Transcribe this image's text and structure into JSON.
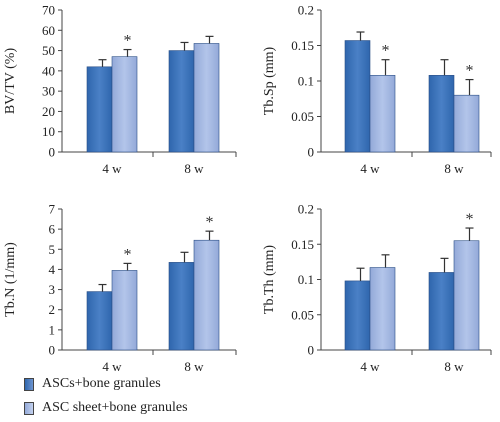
{
  "colors": {
    "series1": "#2f66ad",
    "series2": "#93a9d8"
  },
  "legend": {
    "items": [
      "ASCs+bone granules",
      "ASC sheet+bone granules"
    ]
  },
  "chart_data": [
    {
      "type": "bar",
      "ylabel": "BV/TV (%)",
      "categories": [
        "4 w",
        "8 w"
      ],
      "ylim": [
        0,
        70
      ],
      "yticks": [
        "0",
        "10",
        "20",
        "30",
        "40",
        "50",
        "60",
        "70"
      ],
      "series": [
        {
          "name": "ASCs+bone granules",
          "values": [
            42,
            50
          ],
          "errors": [
            3.5,
            4
          ]
        },
        {
          "name": "ASC sheet+bone granules",
          "values": [
            47,
            53.5
          ],
          "errors": [
            3.5,
            3.5
          ]
        }
      ],
      "significance": [
        [
          false,
          true
        ],
        [
          false,
          false
        ]
      ],
      "significance_label": "*"
    },
    {
      "type": "bar",
      "ylabel": "Tb.Sp (mm)",
      "categories": [
        "4 w",
        "8 w"
      ],
      "ylim": [
        0,
        0.2
      ],
      "yticks": [
        "0",
        "0.05",
        "0.1",
        "0.15",
        "0.2"
      ],
      "series": [
        {
          "name": "ASCs+bone granules",
          "values": [
            0.157,
            0.108
          ],
          "errors": [
            0.012,
            0.022
          ]
        },
        {
          "name": "ASC sheet+bone granules",
          "values": [
            0.108,
            0.08
          ],
          "errors": [
            0.022,
            0.022
          ]
        }
      ],
      "significance": [
        [
          false,
          true
        ],
        [
          false,
          true
        ]
      ],
      "significance_label": "*"
    },
    {
      "type": "bar",
      "ylabel": "Tb.N (1/mm)",
      "categories": [
        "4 w",
        "8 w"
      ],
      "ylim": [
        0,
        7
      ],
      "yticks": [
        "0",
        "1",
        "2",
        "3",
        "4",
        "5",
        "6",
        "7"
      ],
      "series": [
        {
          "name": "ASCs+bone granules",
          "values": [
            2.9,
            4.35
          ],
          "errors": [
            0.35,
            0.5
          ]
        },
        {
          "name": "ASC sheet+bone granules",
          "values": [
            3.95,
            5.45
          ],
          "errors": [
            0.35,
            0.45
          ]
        }
      ],
      "significance": [
        [
          false,
          true
        ],
        [
          false,
          true
        ]
      ],
      "significance_label": "*"
    },
    {
      "type": "bar",
      "ylabel": "Tb.Th (mm)",
      "categories": [
        "4 w",
        "8 w"
      ],
      "ylim": [
        0,
        0.2
      ],
      "yticks": [
        "0",
        "0.05",
        "0.1",
        "0.15",
        "0.2"
      ],
      "series": [
        {
          "name": "ASCs+bone granules",
          "values": [
            0.098,
            0.11
          ],
          "errors": [
            0.018,
            0.02
          ]
        },
        {
          "name": "ASC sheet+bone granules",
          "values": [
            0.117,
            0.155
          ],
          "errors": [
            0.018,
            0.018
          ]
        }
      ],
      "significance": [
        [
          false,
          false
        ],
        [
          false,
          true
        ]
      ],
      "significance_label": "*"
    }
  ]
}
